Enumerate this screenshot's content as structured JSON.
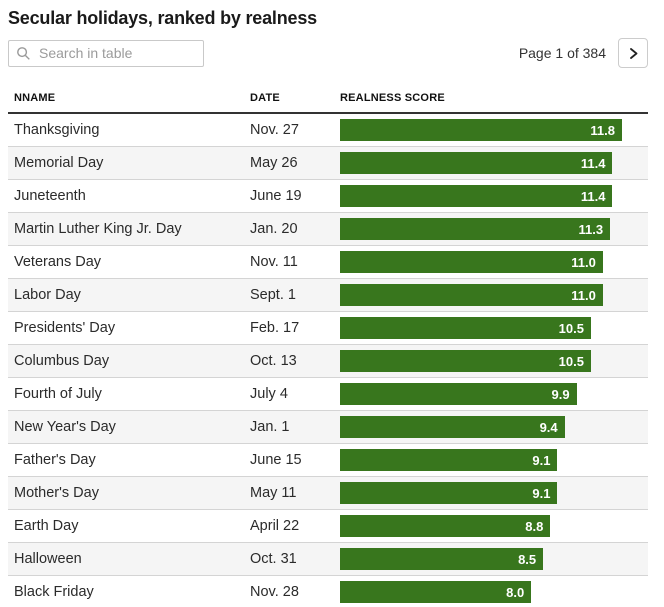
{
  "title": "Secular holidays, ranked by realness",
  "search": {
    "placeholder": "Search in table",
    "value": ""
  },
  "pagination": {
    "label": "Page 1 of 384"
  },
  "icons": {
    "search": "search-icon",
    "next": "chevron-right-icon"
  },
  "colors": {
    "bar_green": "#38761d",
    "alt_row_bg": "#f5f5f5",
    "separator": "#d4d4d4",
    "header_rule": "#333333"
  },
  "table": {
    "columns": [
      "NNAME",
      "DATE",
      "REALNESS SCORE"
    ]
  },
  "chart_data": {
    "type": "table",
    "title": "Secular holidays, ranked by realness",
    "columns": [
      "NNAME",
      "DATE",
      "REALNESS SCORE"
    ],
    "bar_column": "REALNESS SCORE",
    "bar_color": "#38761d",
    "bar_value_range": [
      0,
      11.8
    ],
    "rows": [
      {
        "name": "Thanksgiving",
        "date": "Nov. 27",
        "score": 11.8,
        "score_label": "11.8"
      },
      {
        "name": "Memorial Day",
        "date": "May 26",
        "score": 11.4,
        "score_label": "11.4"
      },
      {
        "name": "Juneteenth",
        "date": "June 19",
        "score": 11.4,
        "score_label": "11.4"
      },
      {
        "name": "Martin Luther King Jr. Day",
        "date": "Jan. 20",
        "score": 11.3,
        "score_label": "11.3"
      },
      {
        "name": "Veterans Day",
        "date": "Nov. 11",
        "score": 11.0,
        "score_label": "11.0"
      },
      {
        "name": "Labor Day",
        "date": "Sept. 1",
        "score": 11.0,
        "score_label": "11.0"
      },
      {
        "name": "Presidents' Day",
        "date": "Feb. 17",
        "score": 10.5,
        "score_label": "10.5"
      },
      {
        "name": "Columbus Day",
        "date": "Oct. 13",
        "score": 10.5,
        "score_label": "10.5"
      },
      {
        "name": "Fourth of July",
        "date": "July 4",
        "score": 9.9,
        "score_label": "9.9"
      },
      {
        "name": "New Year's Day",
        "date": "Jan. 1",
        "score": 9.4,
        "score_label": "9.4"
      },
      {
        "name": "Father's Day",
        "date": "June 15",
        "score": 9.1,
        "score_label": "9.1"
      },
      {
        "name": "Mother's Day",
        "date": "May 11",
        "score": 9.1,
        "score_label": "9.1"
      },
      {
        "name": "Earth Day",
        "date": "April 22",
        "score": 8.8,
        "score_label": "8.8"
      },
      {
        "name": "Halloween",
        "date": "Oct. 31",
        "score": 8.5,
        "score_label": "8.5"
      },
      {
        "name": "Black Friday",
        "date": "Nov. 28",
        "score": 8.0,
        "score_label": "8.0"
      }
    ]
  }
}
